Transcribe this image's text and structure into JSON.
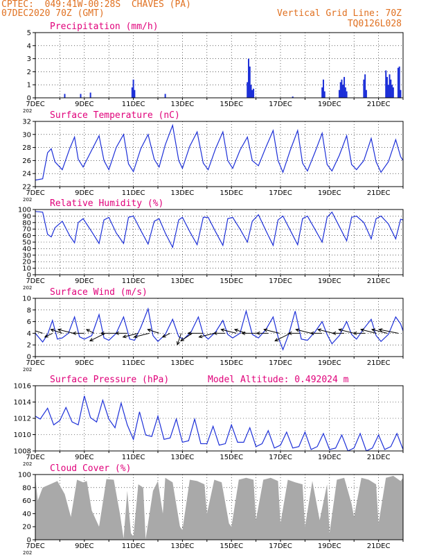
{
  "header": {
    "station": "CPTEC:  049:41W-00:28S  CHAVES (PA)",
    "run": "07DEC2020 70Z (GMT)",
    "grid_note": "Vertical Grid Line: 70Z",
    "code": "TQ0126L028"
  },
  "colors": {
    "header": "#e07020",
    "titles": "#e0007a",
    "series": "#1c2fd8",
    "cloud": "#a9a9a9",
    "arrows": "#000000"
  },
  "x_axis": {
    "start_day": 7,
    "end_day": 22,
    "tick_labels": [
      "7DEC",
      "9DEC",
      "11DEC",
      "13DEC",
      "15DEC",
      "17DEC",
      "19DEC",
      "21DEC"
    ],
    "tick_days": [
      7,
      9,
      11,
      13,
      15,
      17,
      19,
      21
    ],
    "tiny_label": "202"
  },
  "chart_data": [
    {
      "type": "bar",
      "title": "Precipitation (mm/h)",
      "ylim": [
        0,
        5
      ],
      "yticks": [
        "0",
        "1",
        "2",
        "3",
        "4",
        "5"
      ],
      "x": [
        8.2,
        8.85,
        9.25,
        10.95,
        11.0,
        11.05,
        12.3,
        15.65,
        15.7,
        15.75,
        15.8,
        15.85,
        15.9,
        17.5,
        18.7,
        18.75,
        18.8,
        19.4,
        19.45,
        19.5,
        19.55,
        19.6,
        19.65,
        19.7,
        20.4,
        20.45,
        20.5,
        21.3,
        21.35,
        21.4,
        21.45,
        21.5,
        21.55,
        21.6,
        21.8,
        21.85,
        21.9
      ],
      "values": [
        0.3,
        0.3,
        0.4,
        0.8,
        1.4,
        0.6,
        0.3,
        1.2,
        3.0,
        2.4,
        1.0,
        0.6,
        0.7,
        0.1,
        0.8,
        1.4,
        0.5,
        0.6,
        1.2,
        1.4,
        1.0,
        1.6,
        0.8,
        0.5,
        1.4,
        1.8,
        0.6,
        2.1,
        1.6,
        1.0,
        1.8,
        1.4,
        1.0,
        0.8,
        2.3,
        2.4,
        0.6
      ]
    },
    {
      "type": "line",
      "title": "Surface Temperature (nC)",
      "ylim": [
        22,
        32
      ],
      "yticks": [
        "22",
        "24",
        "26",
        "28",
        "30",
        "32"
      ],
      "x": [
        7,
        7.3,
        7.5,
        7.65,
        7.8,
        8.1,
        8.4,
        8.6,
        8.75,
        8.95,
        9.3,
        9.6,
        9.8,
        10.0,
        10.3,
        10.6,
        10.8,
        11.0,
        11.3,
        11.6,
        11.85,
        12.05,
        12.3,
        12.6,
        12.85,
        13.0,
        13.3,
        13.6,
        13.85,
        14.05,
        14.35,
        14.65,
        14.85,
        15.05,
        15.35,
        15.65,
        15.85,
        16.1,
        16.4,
        16.7,
        16.9,
        17.1,
        17.4,
        17.7,
        17.9,
        18.1,
        18.4,
        18.7,
        18.9,
        19.1,
        19.4,
        19.7,
        19.9,
        20.1,
        20.4,
        20.7,
        20.9,
        21.1,
        21.4,
        21.7,
        21.9,
        22.0
      ],
      "values": [
        23.0,
        23.2,
        27.2,
        27.8,
        25.8,
        24.6,
        27.8,
        29.6,
        26.2,
        25.0,
        27.6,
        29.8,
        26.0,
        24.6,
        28.0,
        30.0,
        25.5,
        24.3,
        27.8,
        30.0,
        26.2,
        25.0,
        28.4,
        31.4,
        26.0,
        24.8,
        28.2,
        30.4,
        25.6,
        24.6,
        27.8,
        30.4,
        26.0,
        24.8,
        27.6,
        29.6,
        26.0,
        25.2,
        28.0,
        30.6,
        26.0,
        24.2,
        27.6,
        30.6,
        25.6,
        24.4,
        27.2,
        30.2,
        25.4,
        24.4,
        26.8,
        29.8,
        25.4,
        24.6,
        26.0,
        29.4,
        25.8,
        24.2,
        25.8,
        29.2,
        26.6,
        26.0
      ]
    },
    {
      "type": "line",
      "title": "Relative Humidity (%)",
      "ylim": [
        0,
        100
      ],
      "yticks": [
        "0",
        "10",
        "20",
        "30",
        "40",
        "50",
        "60",
        "70",
        "80",
        "90",
        "100"
      ],
      "x": [
        7,
        7.3,
        7.5,
        7.65,
        7.8,
        8.1,
        8.4,
        8.6,
        8.75,
        8.95,
        9.3,
        9.6,
        9.8,
        10.0,
        10.3,
        10.6,
        10.8,
        11.0,
        11.3,
        11.6,
        11.85,
        12.05,
        12.3,
        12.6,
        12.85,
        13.0,
        13.3,
        13.6,
        13.85,
        14.05,
        14.35,
        14.65,
        14.85,
        15.05,
        15.35,
        15.65,
        15.85,
        16.1,
        16.4,
        16.7,
        16.9,
        17.1,
        17.4,
        17.7,
        17.9,
        18.1,
        18.4,
        18.7,
        18.9,
        19.1,
        19.4,
        19.7,
        19.9,
        20.1,
        20.4,
        20.7,
        20.9,
        21.1,
        21.4,
        21.7,
        21.9,
        22.0
      ],
      "values": [
        97,
        96,
        62,
        58,
        72,
        82,
        60,
        49,
        80,
        86,
        66,
        48,
        84,
        88,
        64,
        48,
        88,
        90,
        68,
        47,
        82,
        86,
        64,
        42,
        84,
        88,
        66,
        46,
        88,
        88,
        66,
        45,
        86,
        88,
        70,
        50,
        82,
        92,
        68,
        45,
        84,
        90,
        68,
        46,
        86,
        90,
        70,
        50,
        88,
        96,
        74,
        52,
        88,
        90,
        80,
        55,
        86,
        90,
        78,
        55,
        85,
        84
      ]
    },
    {
      "type": "line",
      "title": "Surface Wind (m/s)",
      "ylim": [
        0,
        10
      ],
      "yticks": [
        "0",
        "2",
        "4",
        "6",
        "8",
        "10"
      ],
      "x": [
        7,
        7.3,
        7.5,
        7.7,
        7.9,
        8.1,
        8.35,
        8.6,
        8.8,
        9.0,
        9.3,
        9.6,
        9.8,
        10.0,
        10.3,
        10.6,
        10.85,
        11.05,
        11.3,
        11.6,
        11.8,
        12.0,
        12.3,
        12.6,
        12.85,
        13.05,
        13.35,
        13.65,
        13.85,
        14.05,
        14.35,
        14.65,
        14.85,
        15.05,
        15.35,
        15.6,
        15.85,
        16.1,
        16.4,
        16.7,
        16.9,
        17.1,
        17.35,
        17.6,
        17.85,
        18.1,
        18.4,
        18.7,
        18.9,
        19.1,
        19.4,
        19.7,
        19.9,
        20.1,
        20.4,
        20.7,
        20.9,
        21.1,
        21.4,
        21.7,
        21.9,
        22.0
      ],
      "values": [
        4.0,
        2.5,
        3.8,
        6.2,
        3.0,
        3.2,
        4.0,
        6.8,
        3.4,
        3.0,
        3.6,
        7.2,
        3.2,
        2.8,
        4.0,
        6.8,
        3.0,
        2.8,
        5.0,
        8.2,
        3.6,
        2.6,
        3.8,
        6.4,
        3.4,
        3.0,
        4.2,
        6.8,
        3.8,
        3.0,
        4.2,
        6.2,
        3.8,
        3.2,
        4.0,
        7.8,
        3.8,
        3.2,
        4.6,
        6.8,
        3.4,
        1.2,
        4.0,
        7.8,
        3.0,
        2.8,
        4.2,
        6.0,
        3.8,
        2.2,
        3.6,
        6.0,
        3.8,
        3.0,
        4.8,
        6.4,
        3.6,
        2.6,
        3.8,
        6.8,
        5.6,
        4.4
      ]
    },
    {
      "type": "line",
      "title": "Surface Pressure (hPa)",
      "annotation": "Model Altitude: 0.492024 m",
      "ylim": [
        1007,
        1016
      ],
      "yticks": [
        "1008",
        "1010",
        "1012",
        "1014",
        "1016"
      ],
      "x": [
        7,
        7.2,
        7.5,
        7.75,
        8.0,
        8.25,
        8.5,
        8.75,
        9.0,
        9.25,
        9.5,
        9.75,
        10.0,
        10.25,
        10.5,
        10.75,
        11.0,
        11.25,
        11.5,
        11.75,
        12.0,
        12.25,
        12.5,
        12.75,
        13.0,
        13.25,
        13.5,
        13.75,
        14.0,
        14.25,
        14.5,
        14.75,
        15.0,
        15.25,
        15.5,
        15.75,
        16.0,
        16.25,
        16.5,
        16.75,
        17.0,
        17.25,
        17.5,
        17.75,
        18.0,
        18.25,
        18.5,
        18.75,
        19.0,
        19.25,
        19.5,
        19.75,
        20.0,
        20.25,
        20.5,
        20.75,
        21.0,
        21.25,
        21.5,
        21.75,
        22.0
      ],
      "values": [
        1011.8,
        1011.4,
        1012.9,
        1010.6,
        1011.2,
        1013.0,
        1011.0,
        1010.6,
        1014.6,
        1011.6,
        1011.0,
        1014.0,
        1011.4,
        1010.2,
        1013.6,
        1010.6,
        1008.6,
        1012.4,
        1009.2,
        1009.0,
        1011.8,
        1008.6,
        1008.8,
        1011.4,
        1008.2,
        1008.4,
        1011.4,
        1008.0,
        1008.0,
        1010.4,
        1007.8,
        1008.0,
        1010.6,
        1008.2,
        1008.2,
        1010.2,
        1007.6,
        1008.0,
        1009.8,
        1007.4,
        1007.8,
        1009.6,
        1007.4,
        1007.6,
        1009.6,
        1007.2,
        1007.6,
        1009.4,
        1007.2,
        1007.4,
        1009.2,
        1007.0,
        1007.4,
        1009.4,
        1007.0,
        1007.4,
        1009.2,
        1007.2,
        1007.6,
        1009.4,
        1007.2
      ]
    },
    {
      "type": "area",
      "title": "Cloud Cover (%)",
      "ylim": [
        0,
        100
      ],
      "yticks": [
        "0",
        "20",
        "40",
        "60",
        "80",
        "100"
      ],
      "x": [
        7,
        7.1,
        7.3,
        7.6,
        7.9,
        8.2,
        8.45,
        8.7,
        8.95,
        9.1,
        9.3,
        9.6,
        9.9,
        10.2,
        10.45,
        10.6,
        10.75,
        10.9,
        11.0,
        11.2,
        11.4,
        11.5,
        11.8,
        12.0,
        12.2,
        12.3,
        12.6,
        12.9,
        13.0,
        13.3,
        13.6,
        13.9,
        14.0,
        14.3,
        14.6,
        14.9,
        15.0,
        15.3,
        15.6,
        15.9,
        16.0,
        16.3,
        16.6,
        16.9,
        17.0,
        17.3,
        17.6,
        17.9,
        18.0,
        18.3,
        18.6,
        18.9,
        19.0,
        19.3,
        19.6,
        19.9,
        20.0,
        20.3,
        20.6,
        20.9,
        21.0,
        21.3,
        21.6,
        21.9,
        22.0
      ],
      "values": [
        95,
        60,
        80,
        85,
        90,
        70,
        35,
        92,
        88,
        90,
        45,
        20,
        93,
        92,
        40,
        2,
        75,
        10,
        5,
        85,
        80,
        1,
        75,
        90,
        40,
        95,
        88,
        20,
        15,
        92,
        90,
        85,
        40,
        92,
        88,
        25,
        20,
        92,
        95,
        92,
        30,
        92,
        95,
        90,
        25,
        92,
        88,
        85,
        20,
        90,
        30,
        85,
        10,
        92,
        95,
        55,
        35,
        95,
        92,
        85,
        25,
        95,
        98,
        90,
        95
      ]
    },
    {
      "type": "vector",
      "title": "Surface Wind (m/s)",
      "x": [
        7.3,
        7.7,
        8.1,
        8.55,
        9.0,
        9.4,
        9.85,
        10.3,
        10.75,
        11.2,
        11.65,
        12.05,
        12.5,
        12.95,
        13.4,
        13.85,
        14.3,
        14.75,
        15.2,
        15.6,
        16.05,
        16.5,
        16.95,
        17.4,
        17.8,
        18.25,
        18.7,
        19.15,
        19.6,
        20.0,
        20.45,
        20.9,
        21.35,
        21.8
      ],
      "u": [
        -3,
        -2,
        -3,
        -4,
        -3,
        -2,
        -4,
        -4,
        -3,
        -4,
        -4,
        -3,
        -2,
        -1,
        -3,
        -4,
        -4,
        -3,
        -4,
        -3,
        -4,
        -3,
        -4,
        -4,
        -3,
        -4,
        -3,
        -4,
        -3,
        -4,
        -3,
        -4,
        -4,
        -5
      ],
      "v": [
        1,
        -1,
        1,
        1,
        0,
        1,
        -2,
        0,
        0,
        -1,
        -1,
        1,
        -1,
        -3,
        -2,
        0,
        -1,
        0,
        1,
        1,
        0,
        0,
        1,
        -2,
        0,
        1,
        0,
        1,
        0,
        1,
        0,
        1,
        1,
        1
      ]
    }
  ]
}
